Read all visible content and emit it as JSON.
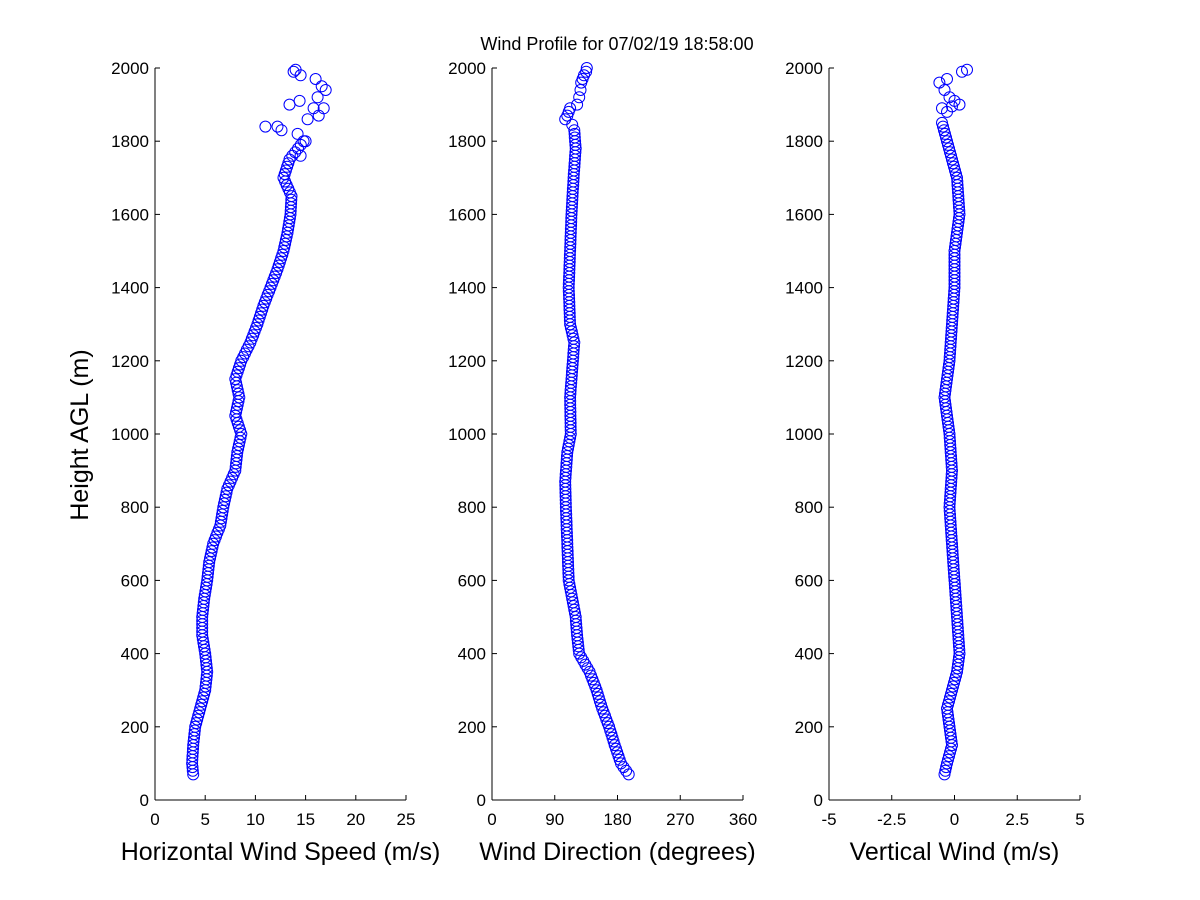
{
  "figure": {
    "title": "Wind Profile for  07/02/19 18:58:00",
    "ylabel": "Height AGL (m)"
  },
  "chart_data": [
    {
      "type": "scatter",
      "xlabel": "Horizontal Wind Speed (m/s)",
      "ylabel": "Height AGL (m)",
      "xlim": [
        0,
        25
      ],
      "ylim": [
        0,
        2000
      ],
      "xticks": [
        "0",
        "5",
        "10",
        "15",
        "20",
        "25"
      ],
      "yticks": [
        "0",
        "200",
        "400",
        "600",
        "800",
        "1000",
        "1200",
        "1400",
        "1600",
        "1800",
        "2000"
      ],
      "marker_color": "#0000ff",
      "grid": false,
      "anchors": [
        [
          3.8,
          70
        ],
        [
          3.7,
          100
        ],
        [
          3.8,
          150
        ],
        [
          4.0,
          200
        ],
        [
          4.5,
          250
        ],
        [
          5.0,
          300
        ],
        [
          5.2,
          350
        ],
        [
          5.0,
          400
        ],
        [
          4.7,
          450
        ],
        [
          4.7,
          500
        ],
        [
          4.9,
          550
        ],
        [
          5.2,
          600
        ],
        [
          5.4,
          650
        ],
        [
          5.8,
          700
        ],
        [
          6.5,
          750
        ],
        [
          6.8,
          800
        ],
        [
          7.2,
          850
        ],
        [
          8.0,
          900
        ],
        [
          8.2,
          950
        ],
        [
          8.6,
          1000
        ],
        [
          8.0,
          1050
        ],
        [
          8.4,
          1100
        ],
        [
          8.0,
          1150
        ],
        [
          8.6,
          1200
        ],
        [
          9.5,
          1250
        ],
        [
          10.2,
          1300
        ],
        [
          10.8,
          1350
        ],
        [
          11.5,
          1400
        ],
        [
          12.2,
          1450
        ],
        [
          12.8,
          1500
        ],
        [
          13.2,
          1550
        ],
        [
          13.5,
          1600
        ],
        [
          13.6,
          1650
        ],
        [
          12.8,
          1700
        ],
        [
          13.4,
          1750
        ],
        [
          14.8,
          1800
        ]
      ],
      "upper_points": [
        [
          14.5,
          1760
        ],
        [
          15.0,
          1800
        ],
        [
          12.2,
          1840
        ],
        [
          11.0,
          1840
        ],
        [
          12.6,
          1830
        ],
        [
          14.2,
          1820
        ],
        [
          15.2,
          1860
        ],
        [
          16.3,
          1870
        ],
        [
          13.4,
          1900
        ],
        [
          15.8,
          1890
        ],
        [
          16.8,
          1890
        ],
        [
          14.4,
          1910
        ],
        [
          16.2,
          1920
        ],
        [
          16.6,
          1950
        ],
        [
          17.0,
          1940
        ],
        [
          16.0,
          1970
        ],
        [
          14.5,
          1980
        ],
        [
          14.0,
          1995
        ],
        [
          13.8,
          1990
        ]
      ]
    },
    {
      "type": "scatter",
      "xlabel": "Wind Direction (degrees)",
      "xlim": [
        0,
        360
      ],
      "ylim": [
        0,
        2000
      ],
      "xticks": [
        "0",
        "90",
        "180",
        "270",
        "360"
      ],
      "yticks": [
        "0",
        "200",
        "400",
        "600",
        "800",
        "1000",
        "1200",
        "1400",
        "1600",
        "1800",
        "2000"
      ],
      "marker_color": "#0000ff",
      "grid": false,
      "anchors": [
        [
          196,
          70
        ],
        [
          185,
          100
        ],
        [
          176,
          150
        ],
        [
          168,
          200
        ],
        [
          158,
          250
        ],
        [
          150,
          300
        ],
        [
          140,
          350
        ],
        [
          125,
          400
        ],
        [
          122,
          450
        ],
        [
          120,
          500
        ],
        [
          115,
          550
        ],
        [
          110,
          600
        ],
        [
          108,
          700
        ],
        [
          106,
          800
        ],
        [
          105,
          870
        ],
        [
          108,
          950
        ],
        [
          113,
          1000
        ],
        [
          112,
          1100
        ],
        [
          114,
          1150
        ],
        [
          118,
          1250
        ],
        [
          112,
          1300
        ],
        [
          110,
          1400
        ],
        [
          112,
          1500
        ],
        [
          114,
          1600
        ],
        [
          117,
          1700
        ],
        [
          120,
          1780
        ],
        [
          118,
          1830
        ]
      ],
      "upper_points": [
        [
          115,
          1845
        ],
        [
          105,
          1860
        ],
        [
          108,
          1870
        ],
        [
          110,
          1880
        ],
        [
          112,
          1890
        ],
        [
          122,
          1900
        ],
        [
          125,
          1920
        ],
        [
          127,
          1940
        ],
        [
          128,
          1960
        ],
        [
          130,
          1970
        ],
        [
          132,
          1980
        ],
        [
          135,
          1990
        ],
        [
          136,
          2000
        ]
      ]
    },
    {
      "type": "scatter",
      "xlabel": "Vertical Wind (m/s)",
      "xlim": [
        -5,
        5
      ],
      "ylim": [
        0,
        2000
      ],
      "xticks": [
        "-5",
        "-2.5",
        "0",
        "2.5",
        "5"
      ],
      "yticks": [
        "0",
        "200",
        "400",
        "600",
        "800",
        "1000",
        "1200",
        "1400",
        "1600",
        "1800",
        "2000"
      ],
      "marker_color": "#0000ff",
      "grid": false,
      "anchors": [
        [
          -0.4,
          70
        ],
        [
          -0.3,
          100
        ],
        [
          -0.1,
          150
        ],
        [
          -0.2,
          200
        ],
        [
          -0.3,
          250
        ],
        [
          -0.1,
          300
        ],
        [
          0.1,
          350
        ],
        [
          0.2,
          400
        ],
        [
          0.1,
          500
        ],
        [
          0.0,
          600
        ],
        [
          -0.1,
          700
        ],
        [
          -0.2,
          800
        ],
        [
          -0.1,
          900
        ],
        [
          -0.2,
          1000
        ],
        [
          -0.4,
          1100
        ],
        [
          -0.2,
          1200
        ],
        [
          -0.1,
          1300
        ],
        [
          0.0,
          1400
        ],
        [
          0.0,
          1500
        ],
        [
          0.2,
          1600
        ],
        [
          0.1,
          1700
        ],
        [
          -0.1,
          1750
        ],
        [
          -0.3,
          1800
        ],
        [
          -0.5,
          1850
        ]
      ],
      "upper_points": [
        [
          -0.3,
          1880
        ],
        [
          -0.5,
          1890
        ],
        [
          -0.1,
          1895
        ],
        [
          0.2,
          1900
        ],
        [
          0.0,
          1910
        ],
        [
          -0.2,
          1920
        ],
        [
          -0.4,
          1940
        ],
        [
          -0.6,
          1960
        ],
        [
          -0.3,
          1970
        ],
        [
          0.3,
          1990
        ],
        [
          0.5,
          1995
        ]
      ]
    }
  ]
}
